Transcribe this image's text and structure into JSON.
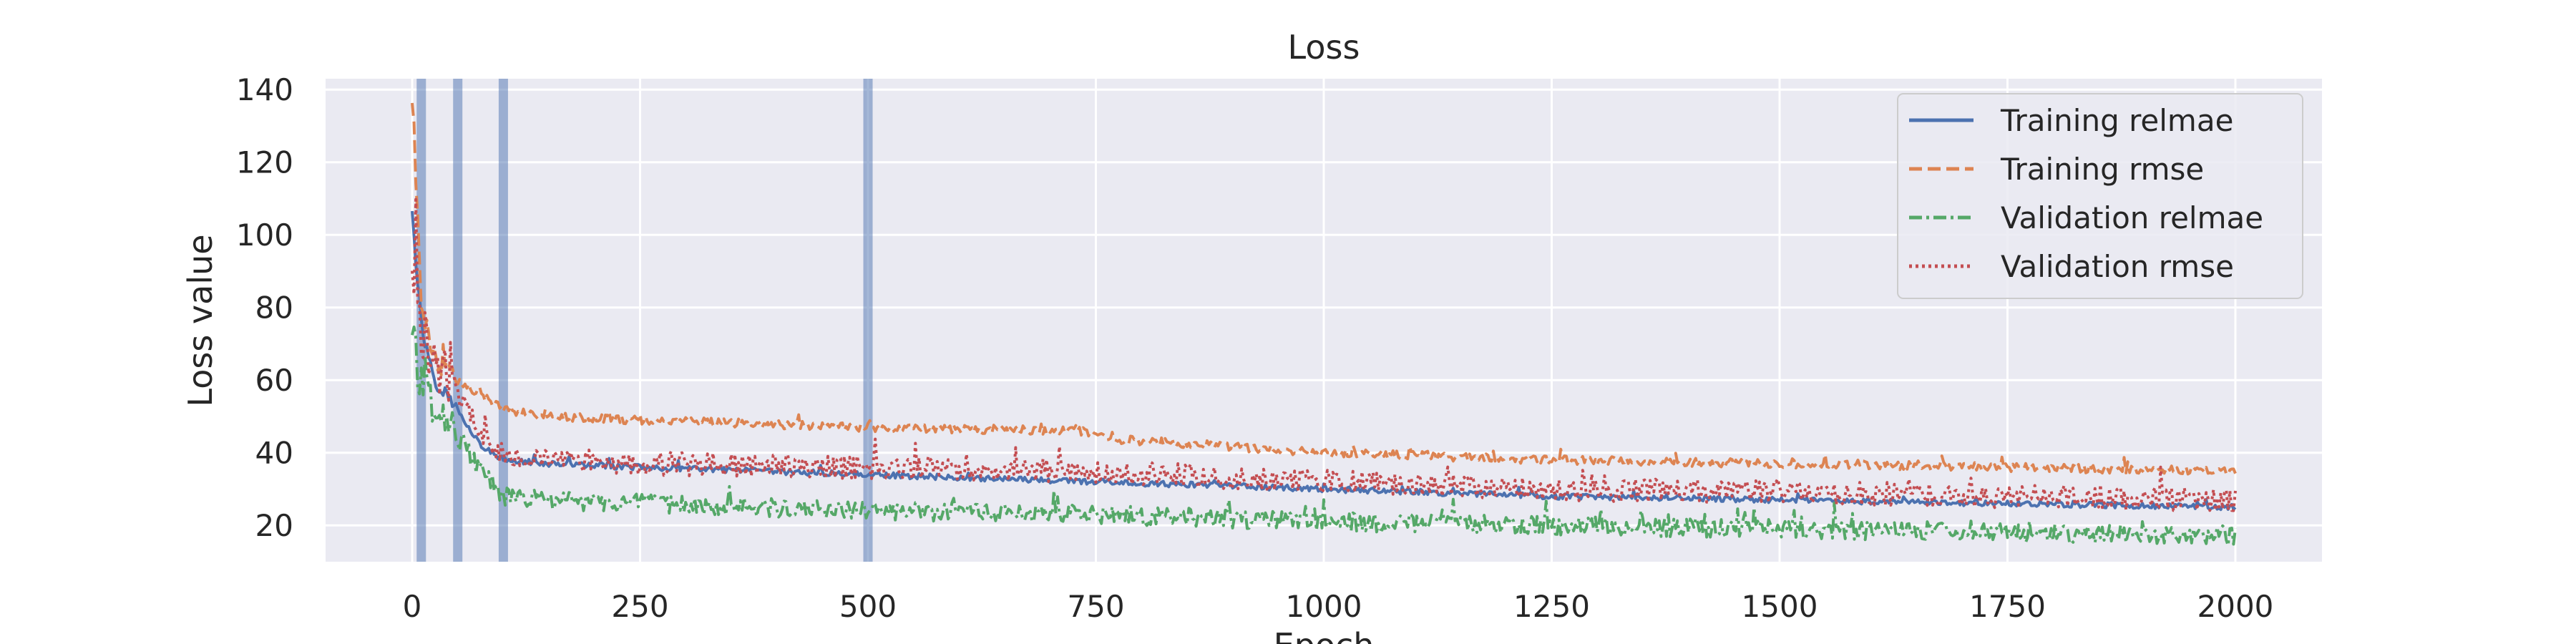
{
  "chart_data": {
    "type": "line",
    "title": "Loss",
    "xlabel": "Epoch",
    "ylabel": "Loss value",
    "xlim": [
      -95,
      2095
    ],
    "ylim": [
      10,
      143
    ],
    "xticks": [
      0,
      250,
      500,
      750,
      1000,
      1250,
      1500,
      1750,
      2000
    ],
    "yticks": [
      20,
      40,
      60,
      80,
      100,
      120,
      140
    ],
    "grid": true,
    "legend_position": "top-right",
    "vlines": [
      10,
      50,
      100,
      500
    ],
    "vline_color": "#4c72b0",
    "series": [
      {
        "name": "Training relmae",
        "color": "#4c72b0",
        "dash": "solid",
        "noise": 0.8,
        "points": [
          [
            0,
            108
          ],
          [
            10,
            75
          ],
          [
            25,
            60
          ],
          [
            50,
            52
          ],
          [
            75,
            42
          ],
          [
            100,
            38
          ],
          [
            150,
            37
          ],
          [
            250,
            36
          ],
          [
            500,
            34
          ],
          [
            750,
            32
          ],
          [
            1000,
            30
          ],
          [
            1250,
            28
          ],
          [
            1500,
            27
          ],
          [
            1750,
            26
          ],
          [
            2000,
            25
          ]
        ]
      },
      {
        "name": "Training rmse",
        "color": "#dd8452",
        "dash": "dashed",
        "noise": 1.2,
        "points": [
          [
            0,
            138
          ],
          [
            10,
            82
          ],
          [
            25,
            66
          ],
          [
            50,
            60
          ],
          [
            75,
            56
          ],
          [
            100,
            52
          ],
          [
            150,
            50
          ],
          [
            250,
            49
          ],
          [
            500,
            47
          ],
          [
            740,
            46
          ],
          [
            760,
            44
          ],
          [
            1000,
            40
          ],
          [
            1250,
            38
          ],
          [
            1500,
            37
          ],
          [
            1750,
            36
          ],
          [
            2000,
            35
          ]
        ]
      },
      {
        "name": "Validation relmae",
        "color": "#55a868",
        "dash": "dashdot",
        "noise": 2.6,
        "points": [
          [
            0,
            75
          ],
          [
            10,
            60
          ],
          [
            25,
            55
          ],
          [
            50,
            45
          ],
          [
            75,
            35
          ],
          [
            100,
            28
          ],
          [
            150,
            27
          ],
          [
            250,
            26
          ],
          [
            500,
            24
          ],
          [
            750,
            23
          ],
          [
            1000,
            21
          ],
          [
            1250,
            20
          ],
          [
            1500,
            19
          ],
          [
            1750,
            18
          ],
          [
            2000,
            17
          ]
        ]
      },
      {
        "name": "Validation rmse",
        "color": "#c44e52",
        "dash": "dotted",
        "noise": 3.2,
        "points": [
          [
            0,
            92
          ],
          [
            10,
            72
          ],
          [
            25,
            65
          ],
          [
            50,
            58
          ],
          [
            75,
            45
          ],
          [
            100,
            40
          ],
          [
            150,
            38
          ],
          [
            250,
            37
          ],
          [
            500,
            36
          ],
          [
            750,
            35
          ],
          [
            1000,
            32
          ],
          [
            1250,
            30
          ],
          [
            1500,
            29
          ],
          [
            1750,
            28
          ],
          [
            2000,
            27
          ]
        ]
      }
    ]
  }
}
